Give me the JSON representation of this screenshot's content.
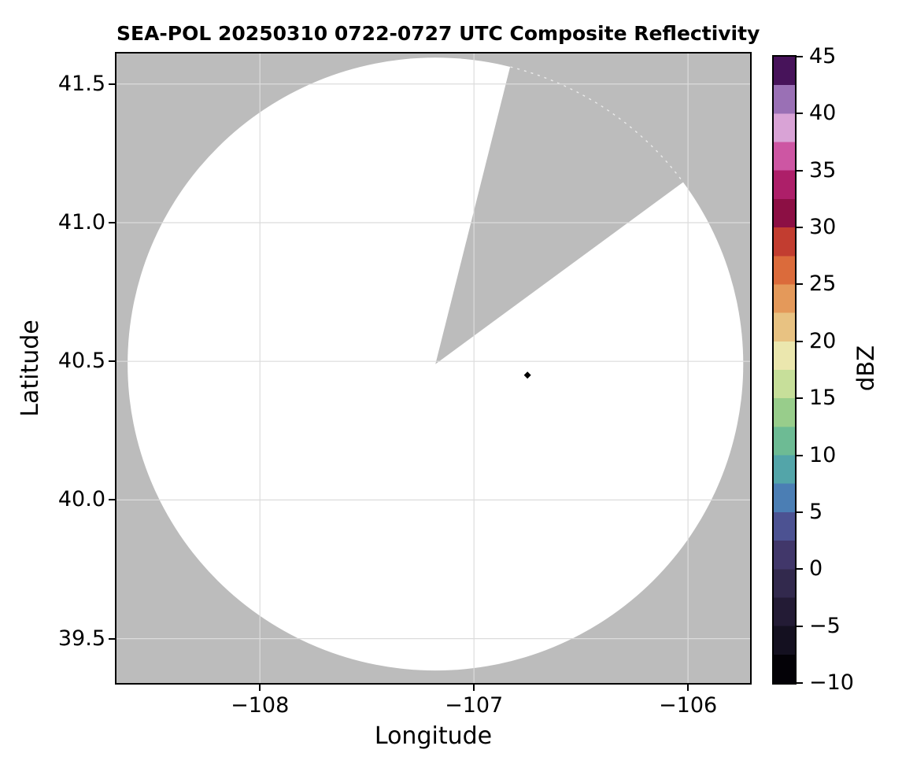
{
  "chart_data": {
    "type": "heatmap",
    "title": "SEA-POL 20250310 0722-0727 UTC Composite Reflectivity",
    "xlabel": "Longitude",
    "ylabel": "Latitude",
    "xlim": [
      -108.67,
      -105.71
    ],
    "ylim": [
      39.34,
      41.61
    ],
    "grid": true,
    "grid_color": "#dcdcdc",
    "background_color": "#bcbcbc",
    "coverage_fill": "#ffffff",
    "x_ticks": [
      {
        "v": -108,
        "label": "−108"
      },
      {
        "v": -107,
        "label": "−107"
      },
      {
        "v": -106,
        "label": "−106"
      }
    ],
    "y_ticks": [
      {
        "v": 41.5,
        "label": "41.5"
      },
      {
        "v": 41.0,
        "label": "41.0"
      },
      {
        "v": 40.5,
        "label": "40.5"
      },
      {
        "v": 40.0,
        "label": "40.0"
      },
      {
        "v": 39.5,
        "label": "39.5"
      }
    ],
    "radar": {
      "center_lon": -107.18,
      "center_lat": 40.49,
      "coverage_radius_lon_deg": 1.438,
      "coverage_radius_lat_deg": 1.105,
      "blocked_sector_azimuth_deg": [
        14.1,
        53.7
      ],
      "range_arc_remnant_color": "#ffffff"
    },
    "echo_points": [
      {
        "lon": -106.75,
        "lat": 40.45,
        "color": "#000000",
        "marker": "diamond"
      }
    ],
    "colorbar": {
      "label": "dBZ",
      "vmin": -10,
      "vmax": 45,
      "legend_position": "right",
      "ticks": [
        {
          "v": 45,
          "label": "45"
        },
        {
          "v": 40,
          "label": "40"
        },
        {
          "v": 35,
          "label": "35"
        },
        {
          "v": 30,
          "label": "30"
        },
        {
          "v": 25,
          "label": "25"
        },
        {
          "v": 20,
          "label": "20"
        },
        {
          "v": 15,
          "label": "15"
        },
        {
          "v": 10,
          "label": "10"
        },
        {
          "v": 5,
          "label": "5"
        },
        {
          "v": 0,
          "label": "0"
        },
        {
          "v": -5,
          "label": "−5"
        },
        {
          "v": -10,
          "label": "−10"
        }
      ],
      "band_step_dbz": 2.5,
      "band_colors_bottom_to_top": [
        "#040207",
        "#141020",
        "#231b35",
        "#32294d",
        "#41376a",
        "#4c5292",
        "#4b7eb4",
        "#53a5a9",
        "#6dbb94",
        "#98cd8b",
        "#c7df9a",
        "#ebe7ae",
        "#e8c282",
        "#e4995a",
        "#db6b3b",
        "#c23d30",
        "#8c0f44",
        "#ad1f69",
        "#cd56a3",
        "#d9a3d6",
        "#9a70b5",
        "#47135a"
      ]
    }
  }
}
